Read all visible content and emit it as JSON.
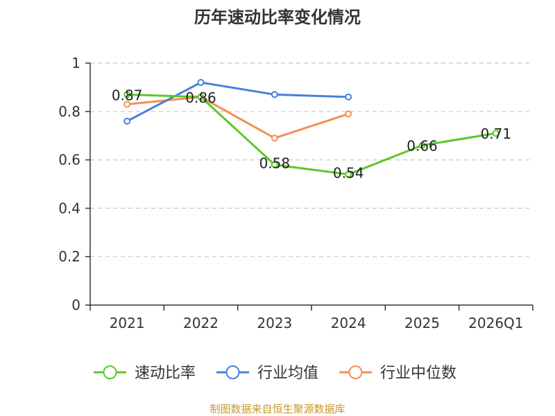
{
  "chart_data": {
    "type": "line",
    "title": "历年速动比率变化情况",
    "categories": [
      "2021",
      "2022",
      "2023",
      "2024",
      "2025",
      "2026Q1"
    ],
    "y_ticks": [
      "0",
      "0.2",
      "0.4",
      "0.6",
      "0.8",
      "1"
    ],
    "ylim": [
      0,
      1
    ],
    "grid": true,
    "legend_position": "bottom",
    "series": [
      {
        "name": "速动比率",
        "color": "#5cc72a",
        "values": [
          0.87,
          0.86,
          0.58,
          0.54,
          0.66,
          0.71
        ],
        "labels": [
          "0.87",
          "0.86",
          "0.58",
          "0.54",
          "0.66",
          "0.71"
        ]
      },
      {
        "name": "行业均值",
        "color": "#4a7fdc",
        "values": [
          0.76,
          0.92,
          0.87,
          0.86,
          null,
          null
        ]
      },
      {
        "name": "行业中位数",
        "color": "#f48e56",
        "values": [
          0.83,
          0.86,
          0.69,
          0.79,
          null,
          null
        ]
      }
    ],
    "source": "制图数据来自恒生聚源数据库"
  }
}
